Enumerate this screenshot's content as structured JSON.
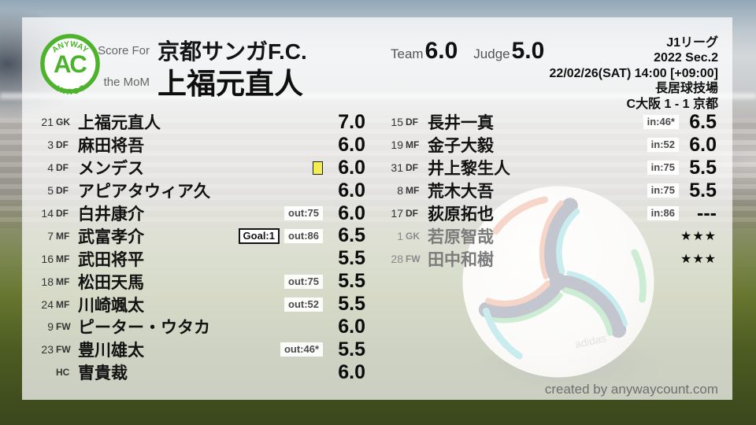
{
  "logo": {
    "top": "ANYWAY",
    "center": "AC",
    "bottom": "COUNT"
  },
  "header": {
    "score_for_label": "Score For",
    "team_name": "京都サンガF.C.",
    "mom_label": "the MoM",
    "mom_name": "上福元直人",
    "team_label": "Team",
    "team_score": "6.0",
    "judge_label": "Judge",
    "judge_score": "5.0",
    "match_info": {
      "league": "J1リーグ",
      "season": "2022 Sec.2",
      "datetime": "22/02/26(SAT) 14:00 [+09:00]",
      "venue": "長居球技場",
      "result": "C大阪 1 - 1 京都"
    }
  },
  "players_left": [
    {
      "num": "21",
      "pos": "GK",
      "name": "上福元直人",
      "rating": "7.0",
      "badges": [],
      "yellow_card": false,
      "grayed": false,
      "stars": false
    },
    {
      "num": "3",
      "pos": "DF",
      "name": "麻田将吾",
      "rating": "6.0",
      "badges": [],
      "yellow_card": false,
      "grayed": false,
      "stars": false
    },
    {
      "num": "4",
      "pos": "DF",
      "name": "メンデス",
      "rating": "6.0",
      "badges": [],
      "yellow_card": true,
      "grayed": false,
      "stars": false
    },
    {
      "num": "5",
      "pos": "DF",
      "name": "アピアタウィア久",
      "rating": "6.0",
      "badges": [],
      "yellow_card": false,
      "grayed": false,
      "stars": false
    },
    {
      "num": "14",
      "pos": "DF",
      "name": "白井康介",
      "rating": "6.0",
      "badges": [
        {
          "type": "sub",
          "text": "out:75"
        }
      ],
      "yellow_card": false,
      "grayed": false,
      "stars": false
    },
    {
      "num": "7",
      "pos": "MF",
      "name": "武富孝介",
      "rating": "6.5",
      "badges": [
        {
          "type": "goal",
          "text": "Goal:1"
        },
        {
          "type": "sub",
          "text": "out:86"
        }
      ],
      "yellow_card": false,
      "grayed": false,
      "stars": false
    },
    {
      "num": "16",
      "pos": "MF",
      "name": "武田将平",
      "rating": "5.5",
      "badges": [],
      "yellow_card": false,
      "grayed": false,
      "stars": false
    },
    {
      "num": "18",
      "pos": "MF",
      "name": "松田天馬",
      "rating": "5.5",
      "badges": [
        {
          "type": "sub",
          "text": "out:75"
        }
      ],
      "yellow_card": false,
      "grayed": false,
      "stars": false
    },
    {
      "num": "24",
      "pos": "MF",
      "name": "川崎颯太",
      "rating": "5.5",
      "badges": [
        {
          "type": "sub",
          "text": "out:52"
        }
      ],
      "yellow_card": false,
      "grayed": false,
      "stars": false
    },
    {
      "num": "9",
      "pos": "FW",
      "name": "ピーター・ウタカ",
      "rating": "6.0",
      "badges": [],
      "yellow_card": false,
      "grayed": false,
      "stars": false
    },
    {
      "num": "23",
      "pos": "FW",
      "name": "豊川雄太",
      "rating": "5.5",
      "badges": [
        {
          "type": "sub",
          "text": "out:46*"
        }
      ],
      "yellow_card": false,
      "grayed": false,
      "stars": false
    },
    {
      "num": "",
      "pos": "HC",
      "name": "曺貴裁",
      "rating": "6.0",
      "badges": [],
      "yellow_card": false,
      "grayed": false,
      "stars": false
    }
  ],
  "players_right": [
    {
      "num": "15",
      "pos": "DF",
      "name": "長井一真",
      "rating": "6.5",
      "badges": [
        {
          "type": "sub",
          "text": "in:46*"
        }
      ],
      "yellow_card": false,
      "grayed": false,
      "stars": false
    },
    {
      "num": "19",
      "pos": "MF",
      "name": "金子大毅",
      "rating": "6.0",
      "badges": [
        {
          "type": "sub",
          "text": "in:52"
        }
      ],
      "yellow_card": false,
      "grayed": false,
      "stars": false
    },
    {
      "num": "31",
      "pos": "DF",
      "name": "井上黎生人",
      "rating": "5.5",
      "badges": [
        {
          "type": "sub",
          "text": "in:75"
        }
      ],
      "yellow_card": false,
      "grayed": false,
      "stars": false
    },
    {
      "num": "8",
      "pos": "MF",
      "name": "荒木大吾",
      "rating": "5.5",
      "badges": [
        {
          "type": "sub",
          "text": "in:75"
        }
      ],
      "yellow_card": false,
      "grayed": false,
      "stars": false
    },
    {
      "num": "17",
      "pos": "DF",
      "name": "荻原拓也",
      "rating": "---",
      "badges": [
        {
          "type": "sub",
          "text": "in:86"
        }
      ],
      "yellow_card": false,
      "grayed": false,
      "stars": false
    },
    {
      "num": "1",
      "pos": "GK",
      "name": "若原智哉",
      "rating": "★★★",
      "badges": [],
      "yellow_card": false,
      "grayed": true,
      "stars": true
    },
    {
      "num": "28",
      "pos": "FW",
      "name": "田中和樹",
      "rating": "★★★",
      "badges": [],
      "yellow_card": false,
      "grayed": true,
      "stars": true
    }
  ],
  "ball": {
    "brand": "adidas"
  },
  "footer": {
    "credit": "created by anywaycount.com"
  },
  "colors": {
    "accent_green": "#4db32c",
    "yellow_card": "#f2ee52",
    "text_dark": "#101010",
    "text_gray_label": "#666666",
    "grayed_player": "#7c7c7c",
    "badge_text": "#4b4b4b"
  }
}
